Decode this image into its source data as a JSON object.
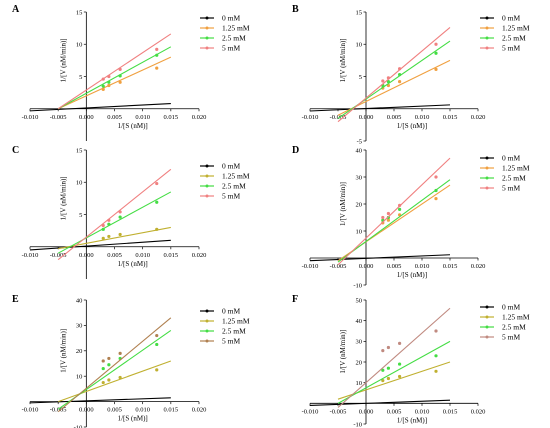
{
  "chart_data": [
    {
      "panel": "A",
      "type": "line",
      "xlabel": "1/[S (nM)]",
      "ylabel": "1/[V (nM/min)]",
      "xlim": [
        -0.01,
        0.02
      ],
      "ylim": [
        -5,
        15
      ],
      "x_ticks": [
        "-0.010",
        "-0.005",
        "0.000",
        "0.005",
        "0.010",
        "0.015",
        "0.020"
      ],
      "y_ticks": [
        "5",
        "10",
        "15"
      ],
      "legend_position": "top-right",
      "series": [
        {
          "name": "0 mM",
          "color": "#000000",
          "marker": "dot",
          "points": [],
          "line": [
            [
              -0.01,
              -0.33
            ],
            [
              0.015,
              0.8
            ]
          ]
        },
        {
          "name": "1.25 mM",
          "color": "#f0a040",
          "marker": "dot",
          "points": [
            [
              0.003,
              3.0
            ],
            [
              0.004,
              3.6
            ],
            [
              0.006,
              4.1
            ],
            [
              0.0125,
              6.3
            ]
          ],
          "line": [
            [
              -0.005,
              0
            ],
            [
              0.015,
              8.0
            ]
          ]
        },
        {
          "name": "2.5 mM",
          "color": "#44dd44",
          "marker": "dot",
          "points": [
            [
              0.003,
              3.5
            ],
            [
              0.004,
              4.1
            ],
            [
              0.006,
              5.1
            ],
            [
              0.0125,
              8.3
            ]
          ],
          "line": [
            [
              -0.005,
              0
            ],
            [
              0.015,
              9.6
            ]
          ]
        },
        {
          "name": "5 mM",
          "color": "#f08080",
          "marker": "dot",
          "points": [
            [
              0.003,
              4.6
            ],
            [
              0.004,
              5.0
            ],
            [
              0.006,
              6.1
            ],
            [
              0.0125,
              9.2
            ]
          ],
          "line": [
            [
              -0.005,
              0
            ],
            [
              0.015,
              11.6
            ]
          ]
        }
      ]
    },
    {
      "panel": "B",
      "type": "line",
      "xlabel": "1/[S (nM)]",
      "ylabel": "1/[V (nM/min)]",
      "xlim": [
        -0.01,
        0.02
      ],
      "ylim": [
        -5,
        15
      ],
      "x_ticks": [
        "-0.010",
        "-0.005",
        "0.000",
        "0.005",
        "0.010",
        "0.015",
        "0.020"
      ],
      "y_ticks": [
        "-5",
        "5",
        "10",
        "15"
      ],
      "legend_position": "top-right",
      "series": [
        {
          "name": "0 mM",
          "color": "#000000",
          "marker": "dot",
          "points": [],
          "line": [
            [
              -0.01,
              -0.35
            ],
            [
              0.015,
              0.6
            ]
          ]
        },
        {
          "name": "1.25 mM",
          "color": "#f0a040",
          "marker": "dot",
          "points": [
            [
              0.003,
              3.2
            ],
            [
              0.004,
              3.6
            ],
            [
              0.006,
              4.2
            ],
            [
              0.0125,
              6.1
            ]
          ],
          "line": [
            [
              -0.005,
              -1.0
            ],
            [
              0.015,
              7.5
            ]
          ]
        },
        {
          "name": "2.5 mM",
          "color": "#44dd44",
          "marker": "dot",
          "points": [
            [
              0.003,
              3.6
            ],
            [
              0.004,
              4.2
            ],
            [
              0.006,
              5.3
            ],
            [
              0.0125,
              8.6
            ]
          ],
          "line": [
            [
              -0.005,
              -1.5
            ],
            [
              0.015,
              10.5
            ]
          ]
        },
        {
          "name": "5 mM",
          "color": "#f08080",
          "marker": "dot",
          "points": [
            [
              0.003,
              4.3
            ],
            [
              0.004,
              4.8
            ],
            [
              0.006,
              6.2
            ],
            [
              0.0125,
              10.0
            ]
          ],
          "line": [
            [
              -0.005,
              -2.0
            ],
            [
              0.015,
              12.6
            ]
          ]
        }
      ]
    },
    {
      "panel": "C",
      "type": "line",
      "xlabel": "1/[S (nM)]",
      "ylabel": "1/[V (nM/min)]",
      "xlim": [
        -0.01,
        0.02
      ],
      "ylim": [
        -5,
        15
      ],
      "x_ticks": [
        "-0.010",
        "-0.005",
        "0.000",
        "0.005",
        "0.010",
        "0.015",
        "0.020"
      ],
      "y_ticks": [
        "5",
        "10",
        "15"
      ],
      "legend_position": "top-right",
      "series": [
        {
          "name": "0 mM",
          "color": "#000000",
          "marker": "dot",
          "points": [],
          "line": [
            [
              -0.01,
              -0.5
            ],
            [
              0.015,
              1.0
            ]
          ]
        },
        {
          "name": "1.25 mM",
          "color": "#c0b030",
          "marker": "dot",
          "points": [
            [
              0.003,
              1.3
            ],
            [
              0.004,
              1.6
            ],
            [
              0.006,
              1.9
            ],
            [
              0.0125,
              2.7
            ]
          ],
          "line": [
            [
              -0.005,
              -0.3
            ],
            [
              0.015,
              3.0
            ]
          ]
        },
        {
          "name": "2.5 mM",
          "color": "#44dd44",
          "marker": "dot",
          "points": [
            [
              0.003,
              2.7
            ],
            [
              0.004,
              3.5
            ],
            [
              0.006,
              4.6
            ],
            [
              0.0125,
              6.9
            ]
          ],
          "line": [
            [
              -0.005,
              -1.0
            ],
            [
              0.015,
              8.5
            ]
          ]
        },
        {
          "name": "5 mM",
          "color": "#f08080",
          "marker": "dot",
          "points": [
            [
              0.003,
              3.3
            ],
            [
              0.004,
              4.1
            ],
            [
              0.006,
              5.4
            ],
            [
              0.0125,
              9.8
            ]
          ],
          "line": [
            [
              -0.005,
              -2.0
            ],
            [
              0.015,
              12.0
            ]
          ]
        }
      ]
    },
    {
      "panel": "D",
      "type": "line",
      "xlabel": "1/[S (nM)]",
      "ylabel": "1/[V (nM/min)]",
      "xlim": [
        -0.01,
        0.02
      ],
      "ylim": [
        -10,
        40
      ],
      "x_ticks": [
        "-0.010",
        "-0.005",
        "0.000",
        "0.005",
        "0.010",
        "0.015",
        "0.020"
      ],
      "y_ticks": [
        "-10",
        "10",
        "20",
        "30",
        "40"
      ],
      "legend_position": "top-right",
      "series": [
        {
          "name": "0 mM",
          "color": "#000000",
          "marker": "dot",
          "points": [],
          "line": [
            [
              -0.01,
              -1.0
            ],
            [
              0.015,
              1.2
            ]
          ]
        },
        {
          "name": "1.25 mM",
          "color": "#f0a040",
          "marker": "dot",
          "points": [
            [
              0.003,
              13.0
            ],
            [
              0.004,
              14.0
            ],
            [
              0.006,
              16.0
            ],
            [
              0.0125,
              22.0
            ]
          ],
          "line": [
            [
              -0.005,
              -1.0
            ],
            [
              0.015,
              27.0
            ]
          ]
        },
        {
          "name": "2.5 mM",
          "color": "#44dd44",
          "marker": "dot",
          "points": [
            [
              0.003,
              14.0
            ],
            [
              0.004,
              15.0
            ],
            [
              0.006,
              18.0
            ],
            [
              0.0125,
              25.0
            ]
          ],
          "line": [
            [
              -0.005,
              -1.5
            ],
            [
              0.015,
              29.0
            ]
          ]
        },
        {
          "name": "5 mM",
          "color": "#f08080",
          "marker": "dot",
          "points": [
            [
              0.003,
              15.0
            ],
            [
              0.004,
              16.5
            ],
            [
              0.006,
              19.5
            ],
            [
              0.0125,
              30.0
            ]
          ],
          "line": [
            [
              -0.005,
              -2.5
            ],
            [
              0.015,
              37.0
            ]
          ]
        }
      ]
    },
    {
      "panel": "E",
      "type": "line",
      "xlabel": "1/[S (nM)]",
      "ylabel": "1/[V (nM/min)]",
      "xlim": [
        -0.01,
        0.02
      ],
      "ylim": [
        -10,
        40
      ],
      "x_ticks": [
        "-0.010",
        "-0.005",
        "0.000",
        "0.005",
        "0.010",
        "0.015",
        "0.020"
      ],
      "y_ticks": [
        "-10",
        "10",
        "20",
        "30",
        "40"
      ],
      "legend_position": "top-right",
      "series": [
        {
          "name": "0 mM",
          "color": "#000000",
          "marker": "dot",
          "points": [],
          "line": [
            [
              -0.01,
              -0.5
            ],
            [
              0.015,
              1.5
            ]
          ]
        },
        {
          "name": "1.25 mM",
          "color": "#c0b030",
          "marker": "dot",
          "points": [
            [
              0.003,
              7.5
            ],
            [
              0.004,
              8.5
            ],
            [
              0.006,
              9.5
            ],
            [
              0.0125,
              12.5
            ]
          ],
          "line": [
            [
              -0.005,
              0.0
            ],
            [
              0.015,
              16.0
            ]
          ]
        },
        {
          "name": "2.5 mM",
          "color": "#44dd44",
          "marker": "dot",
          "points": [
            [
              0.003,
              13.0
            ],
            [
              0.004,
              14.5
            ],
            [
              0.006,
              17.0
            ],
            [
              0.0125,
              22.5
            ]
          ],
          "line": [
            [
              -0.005,
              -3.0
            ],
            [
              0.015,
              28.0
            ]
          ]
        },
        {
          "name": "5 mM",
          "color": "#b08050",
          "marker": "dot",
          "points": [
            [
              0.003,
              16.0
            ],
            [
              0.004,
              17.0
            ],
            [
              0.006,
              19.0
            ],
            [
              0.0125,
              26.0
            ]
          ],
          "line": [
            [
              -0.005,
              -4.0
            ],
            [
              0.015,
              33.0
            ]
          ]
        }
      ]
    },
    {
      "panel": "F",
      "type": "line",
      "xlabel": "1/[S (nM)]",
      "ylabel": "1/[V (nM/min)]",
      "xlim": [
        -0.01,
        0.02
      ],
      "ylim": [
        -10,
        50
      ],
      "x_ticks": [
        "-0.010",
        "-0.005",
        "0.000",
        "0.005",
        "0.010",
        "0.015",
        "0.020"
      ],
      "y_ticks": [
        "-10",
        "10",
        "20",
        "30",
        "40",
        "50"
      ],
      "legend_position": "top-right",
      "series": [
        {
          "name": "0 mM",
          "color": "#000000",
          "marker": "dot",
          "points": [],
          "line": [
            [
              -0.01,
              -1.0
            ],
            [
              0.015,
              1.5
            ]
          ]
        },
        {
          "name": "1.25 mM",
          "color": "#c0b030",
          "marker": "dot",
          "points": [
            [
              0.003,
              11.0
            ],
            [
              0.004,
              12.0
            ],
            [
              0.006,
              13.0
            ],
            [
              0.0125,
              15.5
            ]
          ],
          "line": [
            [
              -0.005,
              2.0
            ],
            [
              0.015,
              20.0
            ]
          ]
        },
        {
          "name": "2.5 mM",
          "color": "#44dd44",
          "marker": "dot",
          "points": [
            [
              0.003,
              16.0
            ],
            [
              0.004,
              17.0
            ],
            [
              0.006,
              19.0
            ],
            [
              0.0125,
              23.0
            ]
          ],
          "line": [
            [
              -0.005,
              0.0
            ],
            [
              0.015,
              30.0
            ]
          ]
        },
        {
          "name": "5 mM",
          "color": "#c08a80",
          "marker": "dot",
          "points": [
            [
              0.003,
              25.5
            ],
            [
              0.004,
              27.0
            ],
            [
              0.006,
              29.0
            ],
            [
              0.0125,
              35.0
            ]
          ],
          "line": [
            [
              -0.005,
              -2.0
            ],
            [
              0.015,
              46.0
            ]
          ]
        }
      ]
    }
  ]
}
